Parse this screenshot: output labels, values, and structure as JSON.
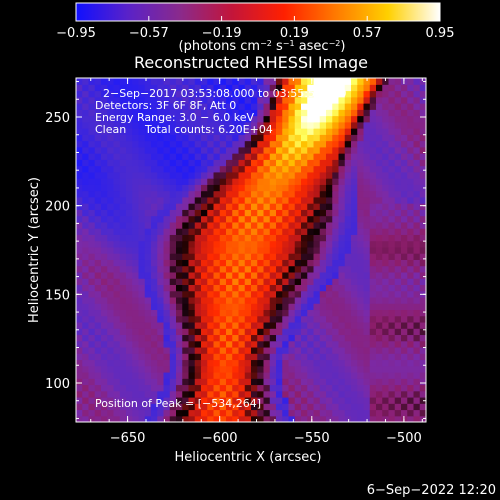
{
  "chart_data": {
    "type": "heatmap",
    "title": "Reconstructed RHESSI Image",
    "xlabel": "Heliocentric X (arcsec)",
    "ylabel": "Heliocentric Y (arcsec)",
    "xlim": [
      -678,
      -488
    ],
    "ylim": [
      78,
      272
    ],
    "x_ticks": [
      -650,
      -600,
      -550,
      -500
    ],
    "x_tick_labels": [
      "−650",
      "−600",
      "−550",
      "−500"
    ],
    "y_ticks": [
      100,
      150,
      200,
      250
    ],
    "y_tick_labels": [
      "100",
      "150",
      "200",
      "250"
    ],
    "colorbar": {
      "range": [
        -0.95,
        0.95
      ],
      "ticks": [
        -0.95,
        -0.57,
        -0.19,
        0.19,
        0.57,
        0.95
      ],
      "tick_labels": [
        "−0.95",
        "−0.57",
        "−0.19",
        "0.19",
        "0.57",
        "0.95"
      ],
      "unit_parts": [
        "(photons cm",
        "−2",
        " s",
        "−1",
        " asec",
        "−2",
        ")"
      ],
      "colors": [
        "#1010ff",
        "#5a22c8",
        "#8a2a8c",
        "#c3153a",
        "#ff2000",
        "#ff7a00",
        "#ffd000",
        "#ffffff"
      ]
    },
    "annotations": [
      "2−Sep−2017 03:53:08.000 to 03:55:55.000",
      "Detectors: 3F 6F 8F, Att 0",
      "Energy Range: 3.0 − 6.0 keV",
      "Clean",
      "Total counts: 6.20E+04"
    ],
    "peak_label": "Position of Peak = [−534,264]",
    "peak": [
      -534,
      264
    ],
    "ridge": [
      [
        80,
        -600
      ],
      [
        120,
        -596
      ],
      [
        150,
        -592
      ],
      [
        180,
        -586
      ],
      [
        210,
        -574
      ],
      [
        240,
        -556
      ],
      [
        272,
        -540
      ]
    ]
  },
  "footer": {
    "timestamp": "6−Sep−2022 12:20"
  }
}
